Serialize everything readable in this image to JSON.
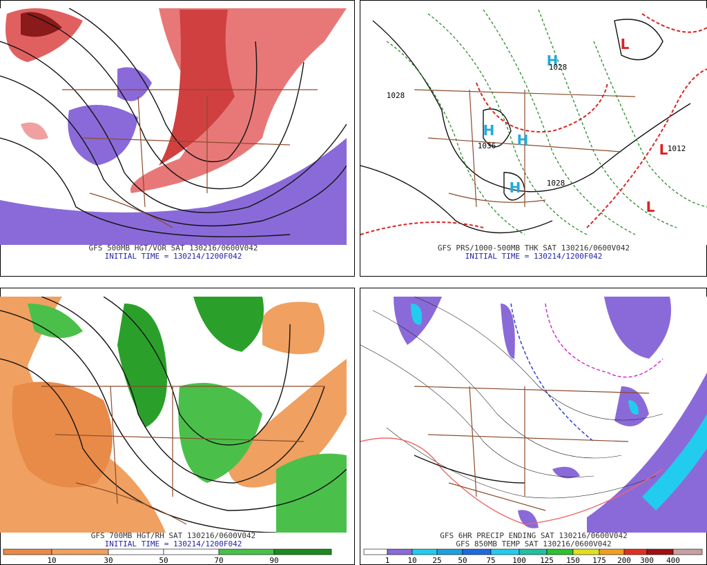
{
  "panels": [
    {
      "caption": "GFS 500MB HGT/VOR SAT 130216/0600V042",
      "initial": "INITIAL TIME = 130214/1200F042"
    },
    {
      "caption": "GFS PRS/1000-500MB THK SAT 130216/0600V042",
      "initial": "INITIAL TIME = 130214/1200F042",
      "markers": [
        "H",
        "H",
        "H",
        "H",
        "L",
        "L",
        "L"
      ],
      "labels": [
        "1028",
        "1036",
        "1028",
        "1012",
        "1028"
      ]
    },
    {
      "caption": "GFS 700MB HGT/RH SAT 130216/0600V042",
      "initial": "INITIAL TIME = 130214/1200F042",
      "colorbar": [
        "10",
        "30",
        "50",
        "70",
        "90"
      ]
    },
    {
      "caption": "GFS 6HR PRECIP ENDING SAT 130216/0600V042",
      "caption2": "GFS 850MB TEMP SAT 130216/0600V042",
      "colorbar": [
        "1",
        "10",
        "25",
        "50",
        "75",
        "100",
        "125",
        "150",
        "175",
        "200",
        "300",
        "400"
      ]
    }
  ]
}
